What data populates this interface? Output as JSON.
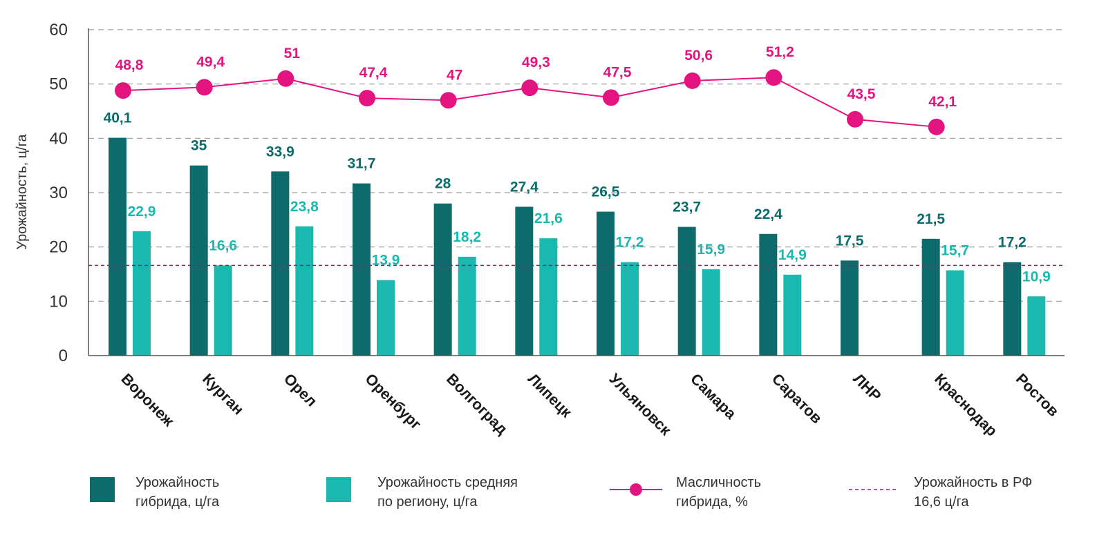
{
  "chart_data": {
    "type": "bar",
    "categories": [
      "Воронеж",
      "Курган",
      "Орел",
      "Оренбург",
      "Волгоград",
      "Липецк",
      "Ульяновск",
      "Самара",
      "Саратов",
      "ЛНР",
      "Краснодар",
      "Ростов"
    ],
    "series": [
      {
        "name": "Урожайность гибрида, ц/га",
        "kind": "bar",
        "color": "#0d6b6b",
        "values": [
          40.1,
          35,
          33.9,
          31.7,
          28,
          27.4,
          26.5,
          23.7,
          22.4,
          17.5,
          21.5,
          17.2
        ],
        "labels": [
          "40,1",
          "35",
          "33,9",
          "31,7",
          "28",
          "27,4",
          "26,5",
          "23,7",
          "22,4",
          "17,5",
          "21,5",
          "17,2"
        ]
      },
      {
        "name": "Урожайность средняя по региону, ц/га",
        "kind": "bar",
        "color": "#1ab8ae",
        "values": [
          22.9,
          16.6,
          23.8,
          13.9,
          18.2,
          21.6,
          17.2,
          15.9,
          14.9,
          null,
          15.7,
          10.9
        ],
        "labels": [
          "22,9",
          "16,6",
          "23,8",
          "13,9",
          "18,2",
          "21,6",
          "17,2",
          "15,9",
          "14,9",
          "",
          "15,7",
          "10,9"
        ]
      },
      {
        "name": "Масличность гибрида, %",
        "kind": "line",
        "color": "#e3147f",
        "values": [
          48.8,
          49.4,
          51,
          47.4,
          47,
          49.3,
          47.5,
          50.6,
          51.2,
          43.5,
          42.1,
          null
        ],
        "labels": [
          "48,8",
          "49,4",
          "51",
          "47,4",
          "47",
          "49,3",
          "47,5",
          "50,6",
          "51,2",
          "43,5",
          "42,1",
          ""
        ]
      }
    ],
    "reference_line": {
      "name": "Урожайность в РФ 16,6 ц/га",
      "value": 16.6,
      "color": "#9b1a6e",
      "style": "dashed"
    },
    "ylabel": "Урожайность, ц/га",
    "xlabel": "",
    "ylim": [
      0,
      60
    ],
    "yticks": [
      0,
      10,
      20,
      30,
      40,
      50,
      60
    ],
    "grid": "horizontal-dashed",
    "legend_position": "bottom"
  },
  "legend": {
    "hybrid_line1": "Урожайность",
    "hybrid_line2": "гибрида, ц/га",
    "region_line1": "Урожайность средняя",
    "region_line2": "по региону, ц/га",
    "oil_line1": "Масличность",
    "oil_line2": "гибрида, %",
    "rf_line1": "Урожайность в РФ",
    "rf_line2": "16,6 ц/га"
  }
}
